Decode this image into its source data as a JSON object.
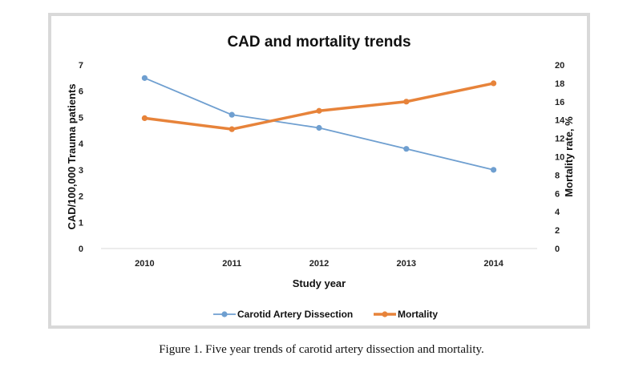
{
  "caption": "Figure 1. Five year trends of carotid artery dissection and mortality.",
  "chart_data": {
    "type": "line",
    "title": "CAD and mortality trends",
    "xlabel": "Study year",
    "ylabel_left": "CAD/100,000 Trauma patients",
    "ylabel_right": "Mortality rate, %",
    "categories": [
      "2010",
      "2011",
      "2012",
      "2013",
      "2014"
    ],
    "ylim_left": [
      0,
      7
    ],
    "yticks_left": [
      0,
      1,
      2,
      3,
      4,
      5,
      6,
      7
    ],
    "ylim_right": [
      0,
      20
    ],
    "yticks_right": [
      0,
      2,
      4,
      6,
      8,
      10,
      12,
      14,
      16,
      18,
      20
    ],
    "grid": false,
    "legend_position": "bottom",
    "series": [
      {
        "name": "Carotid Artery Dissection",
        "axis": "left",
        "color": "#6f9fd0",
        "values": [
          6.5,
          5.1,
          4.6,
          3.8,
          3.0
        ]
      },
      {
        "name": "Mortality",
        "axis": "right",
        "color": "#e7833a",
        "values": [
          14.2,
          13.0,
          15.0,
          16.0,
          18.0
        ]
      }
    ]
  }
}
